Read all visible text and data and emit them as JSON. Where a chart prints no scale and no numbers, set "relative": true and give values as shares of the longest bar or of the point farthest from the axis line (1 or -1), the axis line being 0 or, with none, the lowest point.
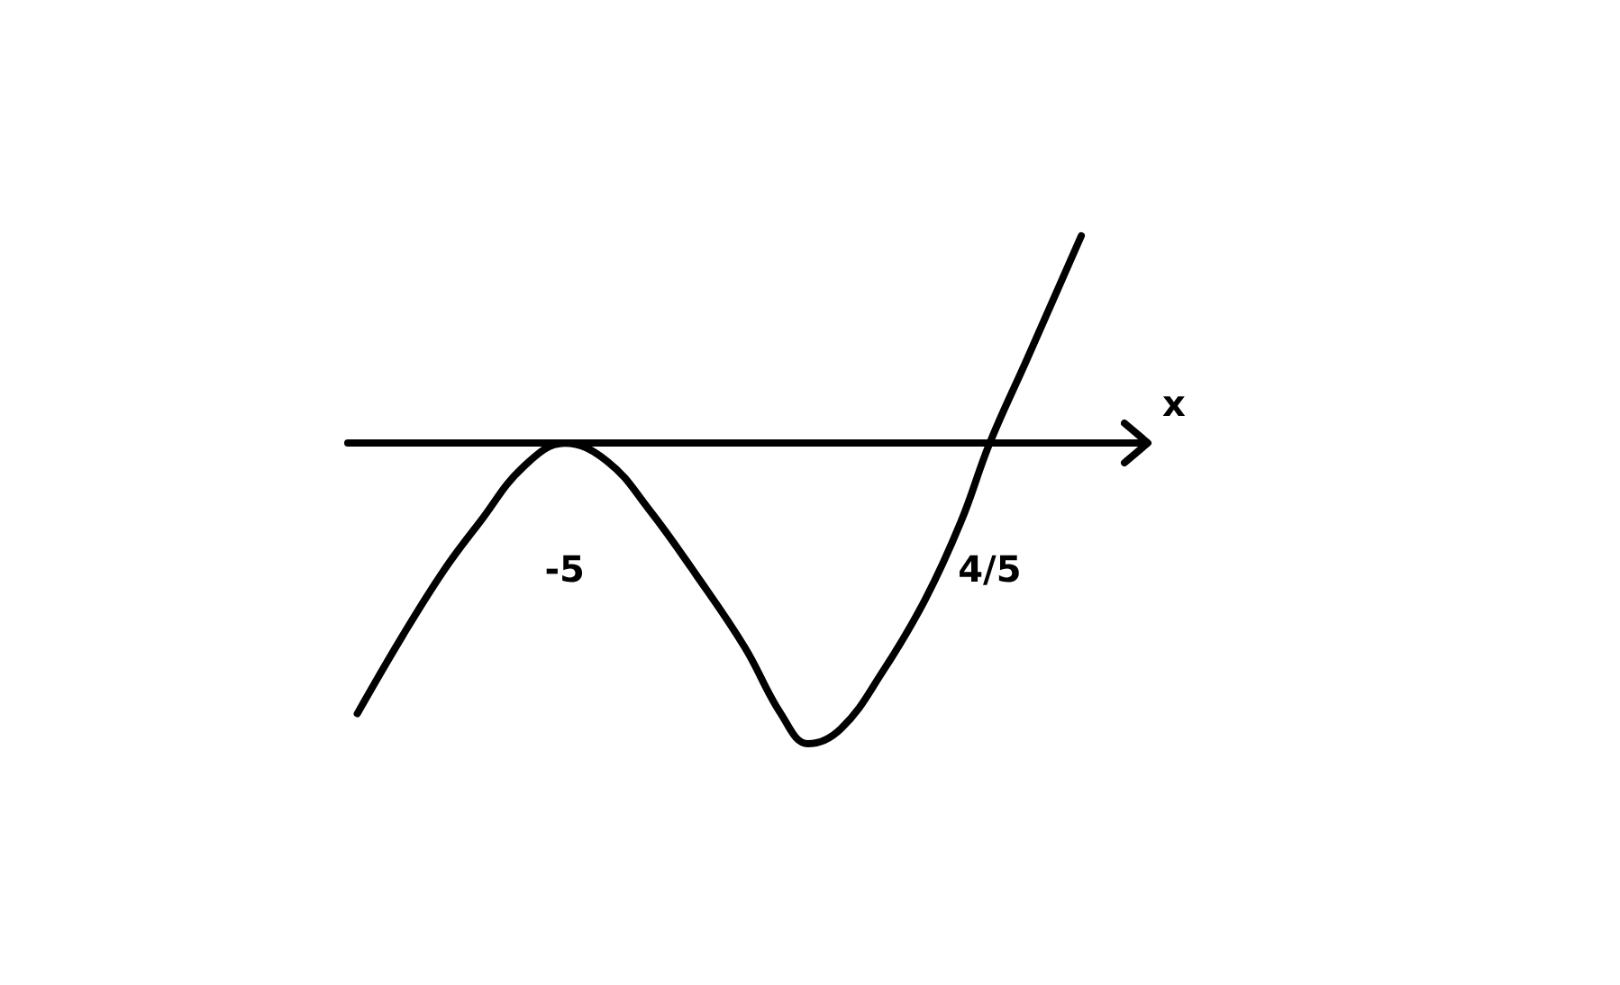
{
  "chart_data": {
    "type": "line",
    "xlabel": "x",
    "x": [
      -7.83,
      -7.21,
      -6.64,
      -6.15,
      -5.57,
      -5.0,
      -4.42,
      -3.85,
      -3.2,
      -2.54,
      -2.05,
      -1.68,
      -1.23,
      -0.66,
      -0.08,
      0.41,
      0.8,
      1.31,
      2.05
    ],
    "values": [
      -0.9,
      -0.64,
      -0.42,
      -0.26,
      -0.08,
      0,
      -0.06,
      -0.22,
      -0.44,
      -0.68,
      -0.9,
      -1,
      -0.95,
      -0.76,
      -0.52,
      -0.26,
      0,
      0.28,
      0.69
    ],
    "color": "#000000",
    "relative": true,
    "xlim": [
      -7.96,
      2.91
    ],
    "xticks": [
      -5,
      {
        "value": 0.8,
        "label": "4/5"
      }
    ],
    "marker": "none",
    "line_style": "solid"
  }
}
